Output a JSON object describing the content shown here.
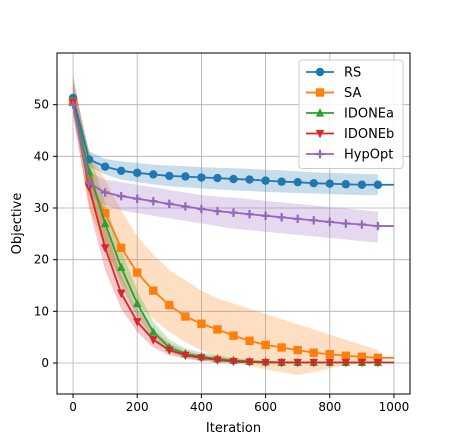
{
  "chart_data": {
    "type": "line",
    "title": "",
    "xlabel": "Iteration",
    "ylabel": "Objective",
    "xlim": [
      -50,
      1050
    ],
    "ylim": [
      -6,
      60
    ],
    "xticks": [
      0,
      200,
      400,
      600,
      800,
      1000
    ],
    "yticks": [
      0,
      10,
      20,
      30,
      40,
      50
    ],
    "grid": true,
    "legend_position": "upper right",
    "x": [
      0,
      50,
      100,
      150,
      200,
      250,
      300,
      350,
      400,
      450,
      500,
      550,
      600,
      650,
      700,
      750,
      800,
      850,
      900,
      950
    ],
    "series": [
      {
        "name": "RS",
        "color": "#1f77b4",
        "marker": "circle",
        "values": [
          51.3,
          39.4,
          38.0,
          37.2,
          36.8,
          36.5,
          36.2,
          36.1,
          35.9,
          35.8,
          35.6,
          35.5,
          35.3,
          35.1,
          35.0,
          34.8,
          34.7,
          34.6,
          34.5,
          34.5
        ],
        "lower": [
          50.5,
          38.0,
          36.5,
          35.5,
          35.0,
          34.6,
          34.2,
          34.0,
          33.8,
          33.6,
          33.4,
          33.3,
          33.1,
          33.0,
          32.9,
          32.8,
          32.7,
          32.6,
          32.5,
          32.5
        ],
        "upper": [
          52.0,
          41.0,
          39.5,
          39.0,
          38.7,
          38.4,
          38.2,
          38.1,
          37.9,
          37.8,
          37.7,
          37.6,
          37.4,
          37.3,
          37.1,
          36.9,
          36.8,
          36.7,
          36.6,
          36.5
        ]
      },
      {
        "name": "SA",
        "color": "#ff7f0e",
        "marker": "square",
        "values": [
          50.5,
          35.5,
          29.0,
          22.3,
          17.5,
          14.0,
          11.2,
          9.0,
          7.6,
          6.5,
          5.3,
          4.3,
          3.5,
          3.0,
          2.5,
          2.0,
          1.7,
          1.4,
          1.2,
          1.0
        ],
        "lower": [
          48.0,
          30.0,
          22.0,
          16.0,
          11.5,
          8.5,
          6.0,
          4.0,
          2.5,
          1.0,
          0.0,
          -0.5,
          -1.2,
          -1.8,
          -2.3,
          -1.8,
          -1.0,
          -0.5,
          0.0,
          0.0
        ],
        "upper": [
          54.0,
          41.0,
          35.5,
          29.5,
          24.5,
          21.0,
          18.0,
          16.0,
          14.0,
          12.5,
          11.5,
          10.5,
          9.5,
          8.5,
          7.5,
          6.5,
          5.5,
          4.5,
          3.5,
          2.5
        ]
      },
      {
        "name": "IDONEa",
        "color": "#2ca02c",
        "marker": "triangle-up",
        "values": [
          50.5,
          37.0,
          27.0,
          18.5,
          11.5,
          6.0,
          3.0,
          1.8,
          1.2,
          0.8,
          0.5,
          0.3,
          0.2,
          0.1,
          0.1,
          0.1,
          0.1,
          0.1,
          0.1,
          0.1
        ],
        "lower": [
          48.5,
          33.0,
          23.0,
          15.0,
          9.0,
          4.5,
          2.0,
          1.0,
          0.5,
          0.2,
          0.0,
          0.0,
          -0.1,
          -0.1,
          -0.1,
          -0.1,
          -0.1,
          -0.1,
          -0.1,
          -0.1
        ],
        "upper": [
          55.0,
          41.0,
          31.0,
          22.0,
          14.0,
          8.0,
          4.5,
          2.8,
          2.0,
          1.5,
          1.0,
          0.7,
          0.5,
          0.4,
          0.3,
          0.3,
          0.3,
          0.3,
          0.3,
          0.3
        ]
      },
      {
        "name": "IDONEb",
        "color": "#d62728",
        "marker": "triangle-down",
        "values": [
          50.5,
          34.0,
          22.3,
          13.5,
          8.0,
          4.5,
          2.5,
          1.5,
          1.0,
          0.6,
          0.3,
          0.2,
          0.1,
          0.1,
          0.1,
          0.1,
          0.1,
          0.1,
          0.1,
          0.1
        ],
        "lower": [
          48.0,
          30.0,
          18.0,
          10.5,
          6.0,
          3.0,
          1.5,
          0.8,
          0.4,
          0.1,
          0.0,
          0.0,
          -0.1,
          -0.1,
          -0.1,
          -0.1,
          -0.1,
          -0.1,
          -0.1,
          -0.1
        ],
        "upper": [
          56.0,
          39.0,
          26.5,
          17.0,
          10.5,
          6.5,
          3.8,
          2.3,
          1.6,
          1.1,
          0.7,
          0.5,
          0.4,
          0.3,
          0.3,
          0.3,
          0.3,
          0.3,
          0.3,
          0.3
        ]
      },
      {
        "name": "HypOpt",
        "color": "#9467bd",
        "marker": "plus",
        "values": [
          50.0,
          34.8,
          33.0,
          32.3,
          31.8,
          31.3,
          30.8,
          30.3,
          29.8,
          29.4,
          29.1,
          28.8,
          28.5,
          28.2,
          27.9,
          27.6,
          27.3,
          27.0,
          26.8,
          26.5
        ],
        "lower": [
          48.5,
          32.5,
          30.5,
          29.5,
          29.0,
          28.5,
          28.0,
          27.5,
          27.0,
          26.5,
          26.0,
          25.7,
          25.4,
          25.1,
          24.8,
          24.5,
          24.2,
          23.9,
          23.6,
          23.3
        ],
        "upper": [
          52.0,
          37.0,
          35.5,
          35.0,
          34.5,
          34.0,
          33.5,
          33.0,
          32.5,
          32.2,
          32.0,
          31.7,
          31.4,
          31.1,
          30.8,
          30.5,
          30.2,
          29.9,
          29.6,
          29.3
        ]
      }
    ]
  }
}
